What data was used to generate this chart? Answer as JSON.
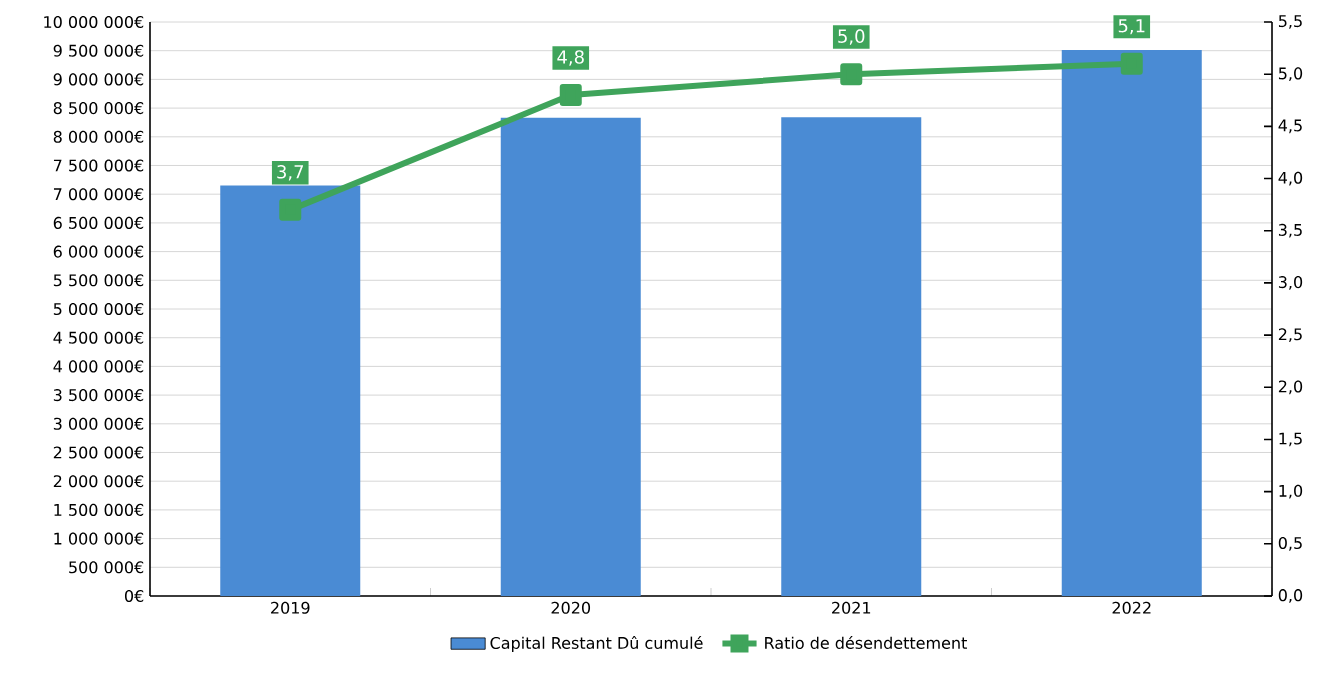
{
  "chart_data": {
    "type": "bar",
    "categories": [
      "2019",
      "2020",
      "2021",
      "2022"
    ],
    "series": [
      {
        "name": "Capital Restant Dû cumulé",
        "color": "#4a8bd4",
        "values": [
          7150000,
          8330000,
          8340000,
          9510000
        ]
      },
      {
        "name": "Ratio de désendettement",
        "color": "#3fa45b",
        "type": "line",
        "axis": "y2",
        "marker": "square",
        "values": [
          3.7,
          4.8,
          5.0,
          5.1
        ],
        "value_labels": [
          "3,7",
          "4,8",
          "5,0",
          "5,1"
        ]
      }
    ],
    "ylim": [
      0,
      10000000
    ],
    "yticks": [
      {
        "value": 0,
        "label": "0€"
      },
      {
        "value": 500000,
        "label": "500 000€"
      },
      {
        "value": 1000000,
        "label": "1 000 000€"
      },
      {
        "value": 1500000,
        "label": "1 500 000€"
      },
      {
        "value": 2000000,
        "label": "2 000 000€"
      },
      {
        "value": 2500000,
        "label": "2 500 000€"
      },
      {
        "value": 3000000,
        "label": "3 000 000€"
      },
      {
        "value": 3500000,
        "label": "3 500 000€"
      },
      {
        "value": 4000000,
        "label": "4 000 000€"
      },
      {
        "value": 4500000,
        "label": "4 500 000€"
      },
      {
        "value": 5000000,
        "label": "5 000 000€"
      },
      {
        "value": 5500000,
        "label": "5 500 000€"
      },
      {
        "value": 6000000,
        "label": "6 000 000€"
      },
      {
        "value": 6500000,
        "label": "6 500 000€"
      },
      {
        "value": 7000000,
        "label": "7 000 000€"
      },
      {
        "value": 7500000,
        "label": "7 500 000€"
      },
      {
        "value": 8000000,
        "label": "8 000 000€"
      },
      {
        "value": 8500000,
        "label": "8 500 000€"
      },
      {
        "value": 9000000,
        "label": "9 000 000€"
      },
      {
        "value": 9500000,
        "label": "9 500 000€"
      },
      {
        "value": 10000000,
        "label": "10 000 000€"
      }
    ],
    "y2lim": [
      0,
      5.5
    ],
    "y2ticks": [
      {
        "value": 0,
        "label": "0,0"
      },
      {
        "value": 0.5,
        "label": "0,5"
      },
      {
        "value": 1,
        "label": "1,0"
      },
      {
        "value": 1.5,
        "label": "1,5"
      },
      {
        "value": 2,
        "label": "2,0"
      },
      {
        "value": 2.5,
        "label": "2,5"
      },
      {
        "value": 3,
        "label": "3,0"
      },
      {
        "value": 3.5,
        "label": "3,5"
      },
      {
        "value": 4,
        "label": "4,0"
      },
      {
        "value": 4.5,
        "label": "4,5"
      },
      {
        "value": 5,
        "label": "5,0"
      },
      {
        "value": 5.5,
        "label": "5,5"
      }
    ],
    "grid": "y",
    "legend": "bottom"
  }
}
